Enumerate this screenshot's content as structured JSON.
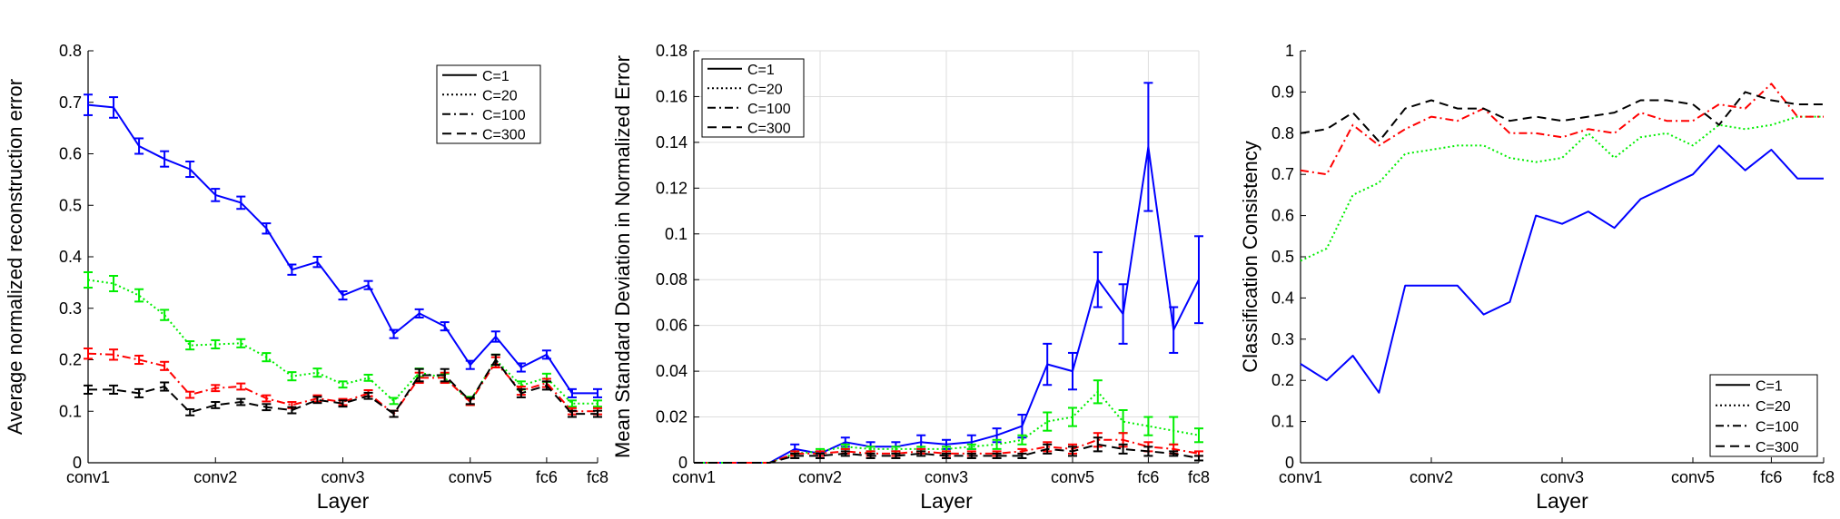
{
  "chart_data": [
    {
      "type": "line",
      "xlabel": "Layer",
      "ylabel": "Average normalized reconstruction error",
      "xlim": [
        1,
        21
      ],
      "ylim": [
        0,
        0.8
      ],
      "xticks": [
        {
          "x": 1,
          "label": "conv1"
        },
        {
          "x": 6,
          "label": "conv2"
        },
        {
          "x": 11,
          "label": "conv3"
        },
        {
          "x": 16,
          "label": "conv5"
        },
        {
          "x": 19,
          "label": "fc6"
        },
        {
          "x": 21,
          "label": "fc8"
        }
      ],
      "yticks": [
        0,
        0.1,
        0.2,
        0.3,
        0.4,
        0.5,
        0.6,
        0.7,
        0.8
      ],
      "ytick_labels": [
        "0",
        "0.1",
        "0.2",
        "0.3",
        "0.4",
        "0.5",
        "0.6",
        "0.7",
        "0.8"
      ],
      "grid": false,
      "error_bars": true,
      "legend": {
        "position": "top-right",
        "entries": [
          "C=1",
          "C=20",
          "C=100",
          "C=300"
        ]
      },
      "x": [
        1,
        2,
        3,
        4,
        5,
        6,
        7,
        8,
        9,
        10,
        11,
        12,
        13,
        14,
        15,
        16,
        17,
        18,
        19,
        20,
        21
      ],
      "series": [
        {
          "name": "C=1",
          "color": "#0000ff",
          "dash": "solid",
          "values": [
            0.695,
            0.69,
            0.615,
            0.59,
            0.57,
            0.52,
            0.505,
            0.455,
            0.375,
            0.39,
            0.325,
            0.345,
            0.25,
            0.29,
            0.265,
            0.19,
            0.245,
            0.185,
            0.21,
            0.135,
            0.135
          ],
          "errors": [
            0.02,
            0.02,
            0.015,
            0.015,
            0.015,
            0.012,
            0.012,
            0.01,
            0.01,
            0.01,
            0.008,
            0.008,
            0.008,
            0.008,
            0.008,
            0.008,
            0.01,
            0.008,
            0.008,
            0.008,
            0.008
          ]
        },
        {
          "name": "C=20",
          "color": "#00ee00",
          "dash": "dotted",
          "values": [
            0.355,
            0.348,
            0.325,
            0.287,
            0.228,
            0.23,
            0.232,
            0.205,
            0.168,
            0.175,
            0.152,
            0.165,
            0.12,
            0.175,
            0.165,
            0.12,
            0.2,
            0.15,
            0.165,
            0.115,
            0.115
          ],
          "errors": [
            0.015,
            0.015,
            0.012,
            0.01,
            0.008,
            0.008,
            0.008,
            0.008,
            0.008,
            0.008,
            0.006,
            0.006,
            0.006,
            0.008,
            0.008,
            0.008,
            0.01,
            0.008,
            0.008,
            0.006,
            0.006
          ]
        },
        {
          "name": "C=100",
          "color": "#ff0000",
          "dash": "dashdot",
          "values": [
            0.212,
            0.21,
            0.2,
            0.188,
            0.132,
            0.145,
            0.148,
            0.125,
            0.112,
            0.125,
            0.118,
            0.135,
            0.095,
            0.165,
            0.165,
            0.118,
            0.195,
            0.14,
            0.155,
            0.1,
            0.1
          ],
          "errors": [
            0.01,
            0.01,
            0.008,
            0.008,
            0.006,
            0.006,
            0.006,
            0.006,
            0.006,
            0.006,
            0.006,
            0.006,
            0.006,
            0.01,
            0.01,
            0.006,
            0.01,
            0.008,
            0.008,
            0.006,
            0.006
          ]
        },
        {
          "name": "C=300",
          "color": "#000000",
          "dash": "dashed",
          "values": [
            0.142,
            0.142,
            0.135,
            0.148,
            0.098,
            0.112,
            0.118,
            0.108,
            0.102,
            0.122,
            0.115,
            0.13,
            0.095,
            0.17,
            0.17,
            0.12,
            0.2,
            0.135,
            0.15,
            0.095,
            0.095
          ],
          "errors": [
            0.008,
            0.008,
            0.008,
            0.008,
            0.006,
            0.006,
            0.006,
            0.006,
            0.006,
            0.006,
            0.006,
            0.006,
            0.006,
            0.012,
            0.012,
            0.006,
            0.01,
            0.008,
            0.008,
            0.006,
            0.006
          ]
        }
      ]
    },
    {
      "type": "line",
      "xlabel": "Layer",
      "ylabel": "Mean Standard Deviation in Normalized Error",
      "xlim": [
        1,
        21
      ],
      "ylim": [
        0,
        0.18
      ],
      "xticks": [
        {
          "x": 1,
          "label": "conv1"
        },
        {
          "x": 6,
          "label": "conv2"
        },
        {
          "x": 11,
          "label": "conv3"
        },
        {
          "x": 16,
          "label": "conv5"
        },
        {
          "x": 19,
          "label": "fc6"
        },
        {
          "x": 21,
          "label": "fc8"
        }
      ],
      "yticks": [
        0,
        0.02,
        0.04,
        0.06,
        0.08,
        0.1,
        0.12,
        0.14,
        0.16,
        0.18
      ],
      "ytick_labels": [
        "0",
        "0.02",
        "0.04",
        "0.06",
        "0.08",
        "0.1",
        "0.12",
        "0.14",
        "0.16",
        "0.18"
      ],
      "grid": true,
      "error_bars": true,
      "legend": {
        "position": "top-left",
        "entries": [
          "C=1",
          "C=20",
          "C=100",
          "C=300"
        ]
      },
      "x": [
        1,
        2,
        3,
        4,
        5,
        6,
        7,
        8,
        9,
        10,
        11,
        12,
        13,
        14,
        15,
        16,
        17,
        18,
        19,
        20,
        21
      ],
      "series": [
        {
          "name": "C=1",
          "color": "#0000ff",
          "dash": "solid",
          "values": [
            0,
            0,
            0,
            0,
            0.006,
            0.004,
            0.009,
            0.007,
            0.007,
            0.009,
            0.008,
            0.009,
            0.012,
            0.016,
            0.043,
            0.04,
            0.08,
            0.065,
            0.138,
            0.058,
            0.08
          ],
          "errors": [
            0,
            0,
            0,
            0,
            0.002,
            0.001,
            0.002,
            0.002,
            0.002,
            0.003,
            0.002,
            0.003,
            0.003,
            0.005,
            0.009,
            0.008,
            0.012,
            0.013,
            0.028,
            0.01,
            0.019
          ]
        },
        {
          "name": "C=20",
          "color": "#00ee00",
          "dash": "dotted",
          "values": [
            0,
            0,
            0,
            0,
            0.004,
            0.005,
            0.007,
            0.006,
            0.006,
            0.006,
            0.006,
            0.007,
            0.008,
            0.01,
            0.018,
            0.02,
            0.031,
            0.018,
            0.016,
            0.014,
            0.012
          ],
          "errors": [
            0,
            0,
            0,
            0,
            0.001,
            0.001,
            0.001,
            0.001,
            0.001,
            0.001,
            0.001,
            0.001,
            0.002,
            0.002,
            0.004,
            0.004,
            0.005,
            0.005,
            0.004,
            0.006,
            0.003
          ]
        },
        {
          "name": "C=100",
          "color": "#ff0000",
          "dash": "dashdot",
          "values": [
            0,
            0,
            0,
            0,
            0.004,
            0.004,
            0.005,
            0.004,
            0.004,
            0.005,
            0.004,
            0.004,
            0.004,
            0.005,
            0.007,
            0.006,
            0.01,
            0.01,
            0.007,
            0.006,
            0.004
          ],
          "errors": [
            0,
            0,
            0,
            0,
            0.001,
            0.001,
            0.001,
            0.001,
            0.001,
            0.001,
            0.001,
            0.001,
            0.001,
            0.001,
            0.002,
            0.002,
            0.003,
            0.003,
            0.002,
            0.002,
            0.001
          ]
        },
        {
          "name": "C=300",
          "color": "#000000",
          "dash": "dashed",
          "values": [
            0,
            0,
            0,
            0,
            0.003,
            0.003,
            0.004,
            0.003,
            0.003,
            0.004,
            0.003,
            0.003,
            0.003,
            0.003,
            0.006,
            0.005,
            0.008,
            0.006,
            0.005,
            0.004,
            0.002
          ],
          "errors": [
            0,
            0,
            0,
            0,
            0.001,
            0.001,
            0.001,
            0.001,
            0.001,
            0.001,
            0.001,
            0.001,
            0.001,
            0.001,
            0.002,
            0.002,
            0.003,
            0.002,
            0.002,
            0.001,
            0.001
          ]
        }
      ]
    },
    {
      "type": "line",
      "xlabel": "Layer",
      "ylabel": "Classification Consistency",
      "xlim": [
        1,
        21
      ],
      "ylim": [
        0,
        1
      ],
      "xticks": [
        {
          "x": 1,
          "label": "conv1"
        },
        {
          "x": 6,
          "label": "conv2"
        },
        {
          "x": 11,
          "label": "conv3"
        },
        {
          "x": 16,
          "label": "conv5"
        },
        {
          "x": 19,
          "label": "fc6"
        },
        {
          "x": 21,
          "label": "fc8"
        }
      ],
      "yticks": [
        0,
        0.1,
        0.2,
        0.3,
        0.4,
        0.5,
        0.6,
        0.7,
        0.8,
        0.9,
        1
      ],
      "ytick_labels": [
        "0",
        "0.1",
        "0.2",
        "0.3",
        "0.4",
        "0.5",
        "0.6",
        "0.7",
        "0.8",
        "0.9",
        "1"
      ],
      "grid": false,
      "error_bars": false,
      "legend": {
        "position": "bottom-right",
        "entries": [
          "C=1",
          "C=20",
          "C=100",
          "C=300"
        ]
      },
      "x": [
        1,
        2,
        3,
        4,
        5,
        6,
        7,
        8,
        9,
        10,
        11,
        12,
        13,
        14,
        15,
        16,
        17,
        18,
        19,
        20,
        21
      ],
      "series": [
        {
          "name": "C=1",
          "color": "#0000ff",
          "dash": "solid",
          "values": [
            0.24,
            0.2,
            0.26,
            0.17,
            0.43,
            0.43,
            0.43,
            0.36,
            0.39,
            0.6,
            0.58,
            0.61,
            0.57,
            0.64,
            0.67,
            0.7,
            0.77,
            0.71,
            0.76,
            0.69,
            0.69
          ]
        },
        {
          "name": "C=20",
          "color": "#00ee00",
          "dash": "dotted",
          "values": [
            0.49,
            0.52,
            0.65,
            0.68,
            0.75,
            0.76,
            0.77,
            0.77,
            0.74,
            0.73,
            0.74,
            0.8,
            0.74,
            0.79,
            0.8,
            0.77,
            0.82,
            0.81,
            0.82,
            0.84,
            0.84
          ]
        },
        {
          "name": "C=100",
          "color": "#ff0000",
          "dash": "dashdot",
          "values": [
            0.71,
            0.7,
            0.82,
            0.77,
            0.81,
            0.84,
            0.83,
            0.86,
            0.8,
            0.8,
            0.79,
            0.81,
            0.8,
            0.85,
            0.83,
            0.83,
            0.87,
            0.86,
            0.92,
            0.84,
            0.84
          ]
        },
        {
          "name": "C=300",
          "color": "#000000",
          "dash": "dashed",
          "values": [
            0.8,
            0.81,
            0.85,
            0.78,
            0.86,
            0.88,
            0.86,
            0.86,
            0.83,
            0.84,
            0.83,
            0.84,
            0.85,
            0.88,
            0.88,
            0.87,
            0.82,
            0.9,
            0.88,
            0.87,
            0.87
          ]
        }
      ]
    }
  ]
}
